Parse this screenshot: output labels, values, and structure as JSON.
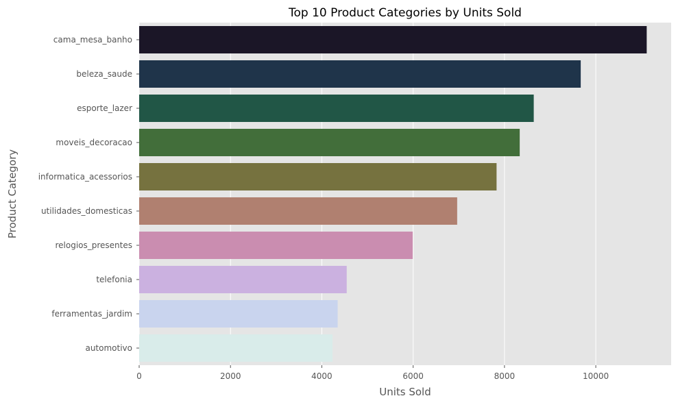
{
  "chart_data": {
    "type": "bar",
    "orientation": "horizontal",
    "title": "Top 10 Product Categories by Units Sold",
    "xlabel": "Units Sold",
    "ylabel": "Product Category",
    "categories": [
      "cama_mesa_banho",
      "beleza_saude",
      "esporte_lazer",
      "moveis_decoracao",
      "informatica_acessorios",
      "utilidades_domesticas",
      "relogios_presentes",
      "telefonia",
      "ferramentas_jardim",
      "automotivo"
    ],
    "values": [
      11115,
      9670,
      8641,
      8334,
      7827,
      6964,
      5991,
      4545,
      4347,
      4235
    ],
    "xlim": [
      0,
      11650
    ],
    "xticks": [
      0,
      2000,
      4000,
      6000,
      8000,
      10000
    ],
    "grid": true,
    "colors": {
      "background": "#e5e5e5",
      "grid": "#ffffff",
      "bars": [
        "#1b1627",
        "#1f344a",
        "#215646",
        "#426e3a",
        "#76723f",
        "#b08070",
        "#ca8db0",
        "#cbb1e0",
        "#c9d4ee",
        "#d9ecea"
      ],
      "text": "#555555",
      "title": "#000000"
    }
  }
}
